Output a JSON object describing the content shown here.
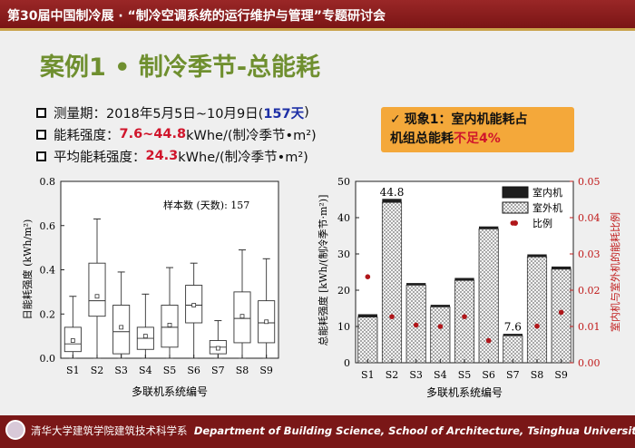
{
  "header": {
    "banner": "第30届中国制冷展 · “制冷空调系统的运行维护与管理”专题研讨会"
  },
  "title": "案例1 • 制冷季节-总能耗",
  "bullets": {
    "period": {
      "prefix": "测量期：2018年5月5日~10月9日(",
      "highlight": "157天",
      "suffix": ")"
    },
    "intensity": {
      "prefix": "能耗强度：",
      "highlight": "7.6~44.8",
      "suffix": " kWhe/(制冷季节•m²)"
    },
    "avg": {
      "prefix": "平均能耗强度：",
      "highlight": "24.3",
      "suffix": " kWhe/(制冷季节•m²)"
    }
  },
  "callout": {
    "check": "✓",
    "line1": "现象1：室内机能耗占",
    "line2_prefix": "机组总能耗",
    "line2_highlight": "不足4%"
  },
  "footer": {
    "cn": "清华大学建筑学院建筑技术科学系",
    "en": "Department of Building Science, School of Architecture, Tsinghua University"
  },
  "colors": {
    "banner": "#8a1d1d",
    "title": "#6f8f2f",
    "highlight_red": "#d0152b",
    "highlight_blue": "#1d2fa6",
    "callout": "#f4a83a",
    "dot": "#b0161a",
    "right_axis": "#c01818"
  },
  "chart_data": [
    {
      "type": "box",
      "title": "",
      "annotation": "样本数 (天数): 157",
      "xlabel": "多联机系统编号",
      "ylabel": "日能耗强度 (kWh/m²)",
      "ylim": [
        0,
        0.8
      ],
      "yticks": [
        "0.0",
        "0.2",
        "0.4",
        "0.6",
        "0.8"
      ],
      "categories": [
        "S1",
        "S2",
        "S3",
        "S4",
        "S5",
        "S6",
        "S7",
        "S8",
        "S9"
      ],
      "boxes": [
        {
          "whisker_low": 0.0,
          "q1": 0.03,
          "median": 0.065,
          "mean": 0.08,
          "q3": 0.14,
          "whisker_high": 0.28
        },
        {
          "whisker_low": 0.0,
          "q1": 0.19,
          "median": 0.26,
          "mean": 0.28,
          "q3": 0.43,
          "whisker_high": 0.63
        },
        {
          "whisker_low": 0.0,
          "q1": 0.02,
          "median": 0.12,
          "mean": 0.14,
          "q3": 0.24,
          "whisker_high": 0.39
        },
        {
          "whisker_low": 0.0,
          "q1": 0.04,
          "median": 0.09,
          "mean": 0.1,
          "q3": 0.14,
          "whisker_high": 0.29
        },
        {
          "whisker_low": 0.0,
          "q1": 0.05,
          "median": 0.14,
          "mean": 0.15,
          "q3": 0.24,
          "whisker_high": 0.41
        },
        {
          "whisker_low": 0.0,
          "q1": 0.16,
          "median": 0.24,
          "mean": 0.24,
          "q3": 0.33,
          "whisker_high": 0.43
        },
        {
          "whisker_low": 0.0,
          "q1": 0.02,
          "median": 0.05,
          "mean": 0.045,
          "q3": 0.08,
          "whisker_high": 0.17
        },
        {
          "whisker_low": 0.0,
          "q1": 0.07,
          "median": 0.18,
          "mean": 0.19,
          "q3": 0.3,
          "whisker_high": 0.49
        },
        {
          "whisker_low": 0.0,
          "q1": 0.07,
          "median": 0.16,
          "mean": 0.165,
          "q3": 0.26,
          "whisker_high": 0.45
        }
      ]
    },
    {
      "type": "bar",
      "title": "",
      "xlabel": "多联机系统编号",
      "ylabel": "总能耗强度 [kWh/(制冷季节·m²)]",
      "y2label": "室内机与室外机的能耗比例",
      "ylim": [
        0,
        50
      ],
      "y2lim": [
        0,
        0.05
      ],
      "yticks": [
        "0",
        "10",
        "20",
        "30",
        "40",
        "50"
      ],
      "y2ticks": [
        "0.00",
        "0.01",
        "0.02",
        "0.03",
        "0.04",
        "0.05"
      ],
      "categories": [
        "S1",
        "S2",
        "S3",
        "S4",
        "S5",
        "S6",
        "S7",
        "S8",
        "S9"
      ],
      "series": [
        {
          "name": "室内机",
          "values": [
            0.4,
            0.6,
            0.2,
            0.2,
            0.3,
            0.3,
            0.15,
            0.3,
            0.35
          ]
        },
        {
          "name": "室外机",
          "values": [
            12.6,
            44.2,
            21.4,
            15.4,
            22.7,
            36.9,
            7.45,
            29.2,
            25.8
          ]
        }
      ],
      "ratio": {
        "name": "比例",
        "values": [
          0.0237,
          0.0127,
          0.0104,
          0.01,
          0.0127,
          0.0061,
          0.0385,
          0.0101,
          0.0139
        ]
      },
      "data_labels": [
        {
          "category": "S2",
          "text": "44.8",
          "value": 44.8
        },
        {
          "category": "S7",
          "text": "7.6",
          "value": 7.6
        }
      ],
      "legend_position": "top-right"
    }
  ]
}
